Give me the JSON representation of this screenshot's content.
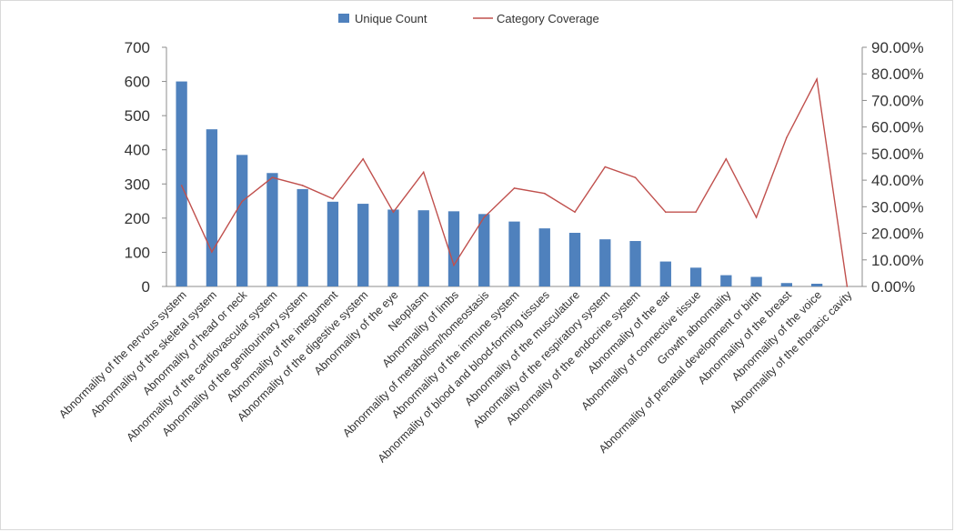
{
  "chart_data": {
    "type": "bar",
    "categories": [
      "Abnormality of the nervous system",
      "Abnormality of the skeletal system",
      "Abnormality of head or neck",
      "Abnormality of the cardiovascular system",
      "Abnormality of the genitourinary system",
      "Abnormality of the integument",
      "Abnormality of the digestive system",
      "Abnormality of the eye",
      "Neoplasm",
      "Abnormality of limbs",
      "Abnormality of metabolism/homeostasis",
      "Abnormality of the immune system",
      "Abnormality of blood and blood-forming tissues",
      "Abnormality of the musculature",
      "Abnormality of the respiratory system",
      "Abnormality of the endocrine system",
      "Abnormality of the ear",
      "Abnormality of connective tissue",
      "Growth abnormality",
      "Abnormality of prenatal development or birth",
      "Abnormality of the breast",
      "Abnormality of the voice",
      "Abnormality of the thoracic cavity"
    ],
    "series": [
      {
        "name": "Unique Count",
        "kind": "bar",
        "axis": "left",
        "color": "#4f81bd",
        "values": [
          600,
          460,
          385,
          332,
          285,
          248,
          242,
          225,
          223,
          220,
          212,
          190,
          170,
          157,
          138,
          133,
          73,
          55,
          33,
          28,
          10,
          8,
          0
        ]
      },
      {
        "name": "Category Coverage",
        "kind": "line",
        "axis": "right",
        "color": "#c0504d",
        "values": [
          0.38,
          0.13,
          0.32,
          0.41,
          0.38,
          0.33,
          0.48,
          0.28,
          0.43,
          0.08,
          0.26,
          0.37,
          0.35,
          0.28,
          0.45,
          0.41,
          0.28,
          0.28,
          0.48,
          0.26,
          0.56,
          0.78,
          0.0
        ]
      }
    ],
    "y_left": {
      "min": 0,
      "max": 700,
      "ticks": [
        "0",
        "100",
        "200",
        "300",
        "400",
        "500",
        "600",
        "700"
      ]
    },
    "y_right": {
      "min": 0,
      "max": 0.9,
      "ticks": [
        "0.00%",
        "10.00%",
        "20.00%",
        "30.00%",
        "40.00%",
        "50.00%",
        "60.00%",
        "70.00%",
        "80.00%",
        "90.00%"
      ]
    },
    "legend": {
      "position": "top",
      "items": [
        {
          "label": "Unique Count",
          "symbol": "bar",
          "color": "#4f81bd"
        },
        {
          "label": "Category Coverage",
          "symbol": "line",
          "color": "#c0504d"
        }
      ]
    },
    "grid": false,
    "title": "",
    "xlabel": "",
    "ylabel": ""
  }
}
